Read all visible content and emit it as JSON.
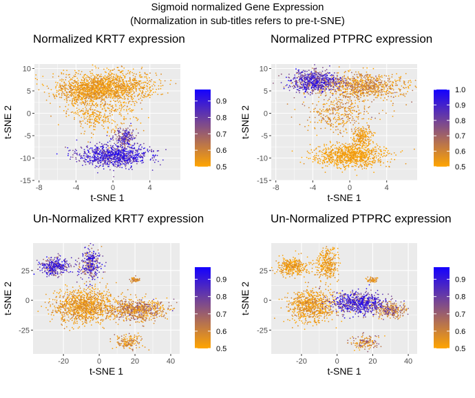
{
  "figure": {
    "title_line1": "Sigmoid normalized Gene Expression",
    "title_line2": "(Normalization in sub-titles refers to pre-t-SNE)"
  },
  "colors": {
    "panel_background": "#ebebeb",
    "grid": "#ffffff",
    "low": "#ffa500",
    "high": "#1400ff"
  },
  "chart_data": [
    {
      "type": "scatter",
      "title": "Normalized KRT7 expression",
      "xlabel": "t-SNE 1",
      "ylabel": "t-SNE 2",
      "xlim": [
        -8.5,
        7.3
      ],
      "ylim": [
        -15,
        11
      ],
      "xticks": [
        -8,
        -4,
        0,
        4
      ],
      "yticks": [
        -15,
        -10,
        -5,
        0,
        5,
        10
      ],
      "legend": {
        "position": "right",
        "range": [
          0.5,
          0.97
        ],
        "breaks": [
          0.5,
          0.6,
          0.7,
          0.8,
          0.9
        ]
      },
      "clusters": [
        {
          "cx": -0.5,
          "cy": 6.0,
          "sx": 3.5,
          "sy": 2.2,
          "n": 1300,
          "value_mean": 0.52,
          "value_sd": 0.04
        },
        {
          "cx": -3.0,
          "cy": 4.5,
          "sx": 2.0,
          "sy": 1.5,
          "n": 400,
          "value_mean": 0.53,
          "value_sd": 0.05
        },
        {
          "cx": -1.2,
          "cy": 0.0,
          "sx": 2.5,
          "sy": 3.0,
          "n": 350,
          "value_mean": 0.52,
          "value_sd": 0.04
        },
        {
          "cx": 0.0,
          "cy": -9.5,
          "sx": 2.6,
          "sy": 1.6,
          "n": 900,
          "value_mean": 0.86,
          "value_sd": 0.07
        },
        {
          "cx": 1.3,
          "cy": -5.5,
          "sx": 0.8,
          "sy": 1.5,
          "n": 200,
          "value_mean": 0.78,
          "value_sd": 0.08
        }
      ]
    },
    {
      "type": "scatter",
      "title": "Normalized PTPRC expression",
      "xlabel": "t-SNE 1",
      "ylabel": "t-SNE 2",
      "xlim": [
        -8.5,
        7.3
      ],
      "ylim": [
        -15,
        11
      ],
      "xticks": [
        -8,
        -4,
        0,
        4
      ],
      "yticks": [
        -15,
        -10,
        -5,
        0,
        5,
        10
      ],
      "legend": {
        "position": "right",
        "range": [
          0.5,
          1.0
        ],
        "breaks": [
          0.5,
          0.6,
          0.7,
          0.8,
          0.9,
          1.0
        ]
      },
      "clusters": [
        {
          "cx": -3.8,
          "cy": 7.0,
          "sx": 1.8,
          "sy": 1.6,
          "n": 700,
          "value_mean": 0.82,
          "value_sd": 0.12
        },
        {
          "cx": 1.5,
          "cy": 6.0,
          "sx": 3.0,
          "sy": 2.0,
          "n": 800,
          "value_mean": 0.56,
          "value_sd": 0.08
        },
        {
          "cx": -1.2,
          "cy": 0.0,
          "sx": 2.5,
          "sy": 3.0,
          "n": 350,
          "value_mean": 0.55,
          "value_sd": 0.07
        },
        {
          "cx": 0.0,
          "cy": -9.5,
          "sx": 2.6,
          "sy": 1.6,
          "n": 900,
          "value_mean": 0.51,
          "value_sd": 0.03
        },
        {
          "cx": 1.3,
          "cy": -5.5,
          "sx": 0.8,
          "sy": 1.5,
          "n": 200,
          "value_mean": 0.52,
          "value_sd": 0.04
        }
      ]
    },
    {
      "type": "scatter",
      "title": "Un-Normalized KRT7 expression",
      "xlabel": "t-SNE 1",
      "ylabel": "t-SNE 2",
      "xlim": [
        -37,
        45
      ],
      "ylim": [
        -45,
        48
      ],
      "xticks": [
        -20,
        0,
        20,
        40
      ],
      "yticks": [
        -25,
        0,
        25
      ],
      "legend": {
        "position": "right",
        "range": [
          0.5,
          0.97
        ],
        "breaks": [
          0.5,
          0.6,
          0.7,
          0.8,
          0.9
        ]
      },
      "clusters": [
        {
          "cx": -25,
          "cy": 28,
          "sx": 6,
          "sy": 5,
          "n": 350,
          "value_mean": 0.82,
          "value_sd": 0.1
        },
        {
          "cx": -5,
          "cy": 30,
          "sx": 4,
          "sy": 9,
          "n": 300,
          "value_mean": 0.8,
          "value_sd": 0.12
        },
        {
          "cx": -8,
          "cy": -5,
          "sx": 12,
          "sy": 9,
          "n": 1100,
          "value_mean": 0.53,
          "value_sd": 0.05
        },
        {
          "cx": 22,
          "cy": -8,
          "sx": 10,
          "sy": 6,
          "n": 700,
          "value_mean": 0.57,
          "value_sd": 0.09
        },
        {
          "cx": 16,
          "cy": -35,
          "sx": 5,
          "sy": 4,
          "n": 150,
          "value_mean": 0.55,
          "value_sd": 0.07
        },
        {
          "cx": 20,
          "cy": 17,
          "sx": 2,
          "sy": 1.5,
          "n": 50,
          "value_mean": 0.55,
          "value_sd": 0.06
        }
      ]
    },
    {
      "type": "scatter",
      "title": "Un-Normalized PTPRC expression",
      "xlabel": "t-SNE 1",
      "ylabel": "t-SNE 2",
      "xlim": [
        -37,
        45
      ],
      "ylim": [
        -45,
        48
      ],
      "xticks": [
        -20,
        0,
        20,
        40
      ],
      "yticks": [
        -25,
        0,
        25
      ],
      "legend": {
        "position": "right",
        "range": [
          0.5,
          0.97
        ],
        "breaks": [
          0.5,
          0.6,
          0.7,
          0.8,
          0.9
        ]
      },
      "clusters": [
        {
          "cx": -25,
          "cy": 28,
          "sx": 6,
          "sy": 5,
          "n": 350,
          "value_mean": 0.52,
          "value_sd": 0.04
        },
        {
          "cx": -5,
          "cy": 30,
          "sx": 4,
          "sy": 9,
          "n": 300,
          "value_mean": 0.52,
          "value_sd": 0.04
        },
        {
          "cx": -15,
          "cy": -5,
          "sx": 9,
          "sy": 9,
          "n": 700,
          "value_mean": 0.53,
          "value_sd": 0.05
        },
        {
          "cx": 12,
          "cy": -2,
          "sx": 10,
          "sy": 6,
          "n": 700,
          "value_mean": 0.82,
          "value_sd": 0.11
        },
        {
          "cx": 30,
          "cy": -8,
          "sx": 6,
          "sy": 4,
          "n": 250,
          "value_mean": 0.62,
          "value_sd": 0.1
        },
        {
          "cx": 16,
          "cy": -35,
          "sx": 5,
          "sy": 4,
          "n": 150,
          "value_mean": 0.58,
          "value_sd": 0.1
        },
        {
          "cx": 20,
          "cy": 17,
          "sx": 2,
          "sy": 1.5,
          "n": 50,
          "value_mean": 0.54,
          "value_sd": 0.05
        }
      ]
    }
  ]
}
